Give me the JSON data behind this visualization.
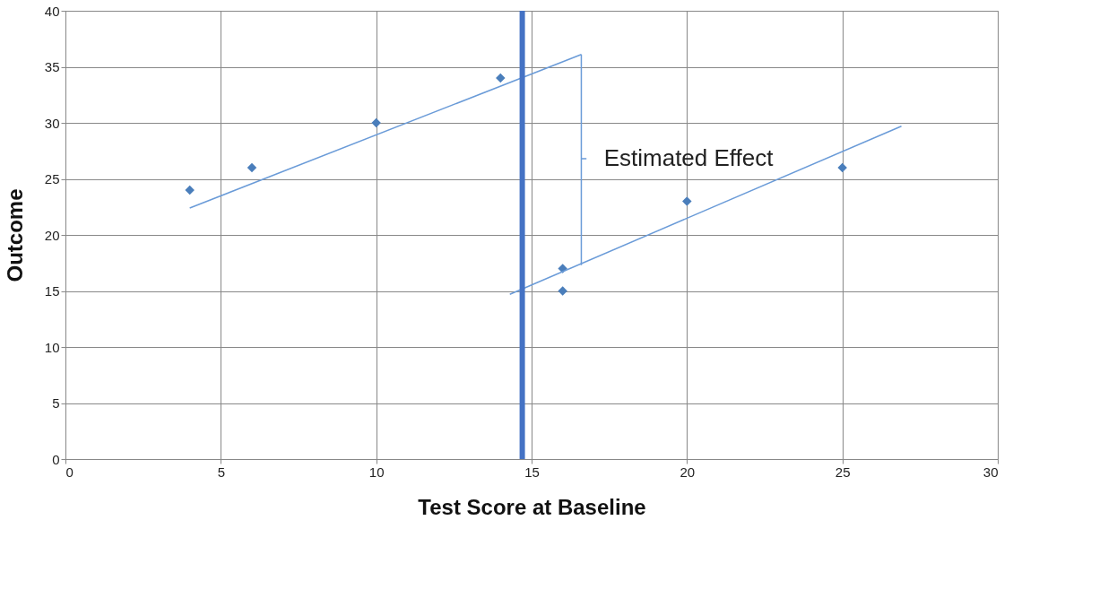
{
  "chart_data": {
    "type": "scatter",
    "xlabel": "Test Score at Baseline",
    "ylabel": "Outcome",
    "xlim": [
      0,
      30
    ],
    "xticks": [
      0,
      5,
      10,
      15,
      20,
      25,
      30
    ],
    "ylim": [
      0,
      40
    ],
    "yticks": [
      0,
      5,
      10,
      15,
      20,
      25,
      30,
      35,
      40
    ],
    "grid": true,
    "marker": "diamond",
    "series": [
      {
        "color": "#4a7ebb",
        "x": [
          4,
          6,
          10,
          14,
          16,
          16,
          20,
          25
        ],
        "values": [
          24,
          26,
          30,
          34,
          17,
          15,
          23,
          26
        ]
      },
      {
        "type": "line",
        "marker": "none",
        "color": "#6a9bd8",
        "x": [
          4,
          16.6
        ],
        "values": [
          22.4,
          36.1
        ]
      },
      {
        "type": "line",
        "marker": "none",
        "color": "#6a9bd8",
        "x": [
          14.3,
          26.9
        ],
        "values": [
          14.7,
          29.7
        ]
      },
      {
        "type": "line",
        "marker": "none",
        "color": "#6a9bd8",
        "x": [
          16.6,
          16.6,
          16.75,
          16.6,
          16.6
        ],
        "values": [
          36.1,
          26.8,
          26.8,
          26.8,
          17.3
        ]
      }
    ],
    "ref_lines": [
      {
        "axis": "x",
        "value": 14.7,
        "color": "#4472c4"
      }
    ],
    "annotations": [
      "Estimated Effect"
    ]
  }
}
